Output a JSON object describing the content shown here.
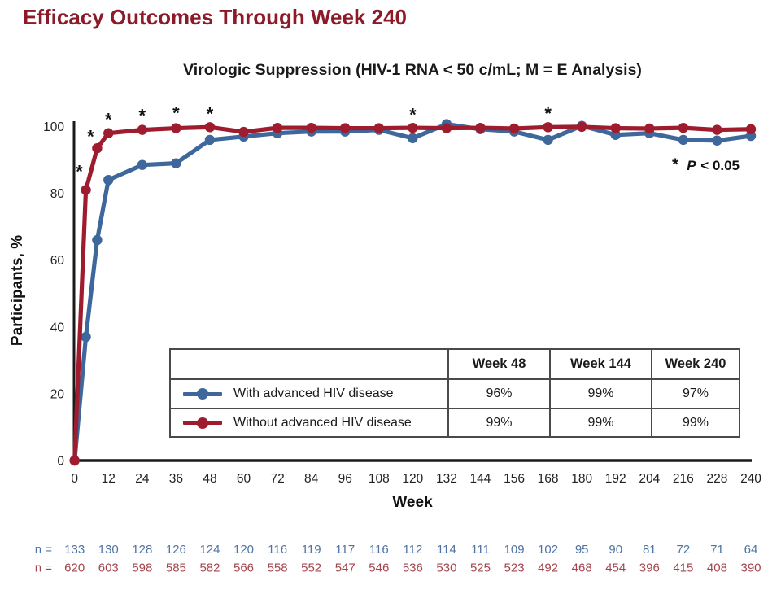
{
  "page": {
    "title": "Efficacy Outcomes Through Week 240",
    "subtitle": "Virologic Suppression (HIV-1 RNA < 50 c/mL; M = E Analysis)"
  },
  "colors": {
    "title_red": "#8C1A28",
    "line_blue": "#3E689B",
    "line_red": "#9E1C2E",
    "text_blue": "#4F74A4",
    "text_red": "#A4454E",
    "axis": "#1a1a1a",
    "table_border": "#4a4a4a"
  },
  "chart_data": {
    "type": "line",
    "title": "Virologic Suppression (HIV-1 RNA < 50 c/mL; M = E Analysis)",
    "xlabel": "Week",
    "ylabel": "Participants, %",
    "xlim": [
      0,
      240
    ],
    "ylim": [
      0,
      100
    ],
    "x_ticks": [
      0,
      12,
      24,
      36,
      48,
      60,
      72,
      84,
      96,
      108,
      120,
      132,
      144,
      156,
      168,
      180,
      192,
      204,
      216,
      228,
      240
    ],
    "y_ticks": [
      0,
      20,
      40,
      60,
      80,
      100
    ],
    "grid": false,
    "legend_position": "table-overlay",
    "x": [
      0,
      4,
      8,
      12,
      24,
      36,
      48,
      60,
      72,
      84,
      96,
      108,
      120,
      132,
      144,
      156,
      168,
      180,
      192,
      204,
      216,
      228,
      240
    ],
    "series": [
      {
        "name": "With advanced HIV disease",
        "color": "#3E689B",
        "values": [
          0,
          37,
          66,
          84,
          88.5,
          89,
          96,
          97,
          98,
          98.5,
          98.5,
          99,
          96.5,
          100.7,
          99.2,
          98.5,
          96,
          100.2,
          97.5,
          98,
          96,
          95.8,
          97.2
        ]
      },
      {
        "name": "Without advanced HIV disease",
        "color": "#9E1C2E",
        "values": [
          0,
          81,
          93.5,
          98,
          99,
          99.5,
          99.8,
          98.4,
          99.6,
          99.6,
          99.5,
          99.5,
          99.6,
          99.5,
          99.6,
          99.4,
          99.8,
          99.9,
          99.5,
          99.4,
          99.6,
          99,
          99.2
        ]
      }
    ],
    "significance": {
      "marker": "*",
      "label": "P < 0.05",
      "points": [
        {
          "week": 4,
          "pct": 87.2,
          "dx": -8
        },
        {
          "week": 8,
          "pct": 97.7,
          "dx": -8
        },
        {
          "week": 12,
          "pct": 102.8,
          "dx": 0
        },
        {
          "week": 24,
          "pct": 104.0,
          "dx": 0
        },
        {
          "week": 36,
          "pct": 104.8,
          "dx": 0
        },
        {
          "week": 48,
          "pct": 104.5,
          "dx": 0
        },
        {
          "week": 120,
          "pct": 104.3,
          "dx": 0
        },
        {
          "week": 168,
          "pct": 104.6,
          "dx": 0
        }
      ]
    }
  },
  "annotation": {
    "star": "*",
    "p": "P",
    "rest": " < 0.05"
  },
  "table": {
    "headers": [
      "",
      "Week 48",
      "Week 144",
      "Week 240"
    ],
    "rows": [
      {
        "label": "With advanced HIV disease",
        "values": [
          "96%",
          "99%",
          "97%"
        ]
      },
      {
        "label": "Without advanced HIV disease",
        "values": [
          "99%",
          "99%",
          "99%"
        ]
      }
    ]
  },
  "n_rows": [
    {
      "label": "n =",
      "series": "With advanced HIV disease",
      "values": [
        133,
        130,
        128,
        126,
        124,
        120,
        116,
        119,
        117,
        116,
        112,
        114,
        111,
        109,
        102,
        95,
        90,
        81,
        72,
        71,
        64
      ]
    },
    {
      "label": "n =",
      "series": "Without advanced HIV disease",
      "values": [
        620,
        603,
        598,
        585,
        582,
        566,
        558,
        552,
        547,
        546,
        536,
        530,
        525,
        523,
        492,
        468,
        454,
        396,
        415,
        408,
        390
      ]
    }
  ]
}
